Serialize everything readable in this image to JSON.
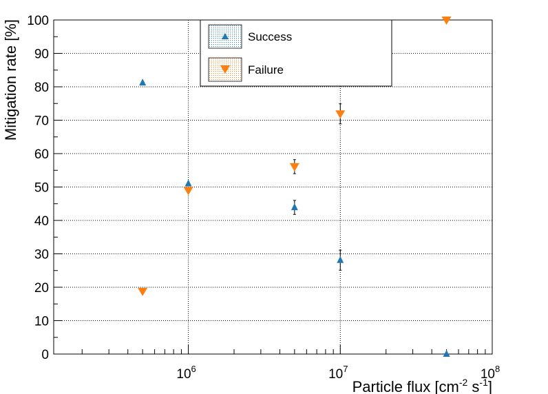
{
  "chart_data": {
    "type": "scatter",
    "title": "",
    "xlabel": {
      "base": "Particle flux [cm",
      "exp1": "-2",
      "mid": " s",
      "exp2": "-1",
      "end": "]"
    },
    "ylabel": "Mitigation rate [%]",
    "xscale": "log",
    "xlim": [
      130000,
      100000000
    ],
    "ylim": [
      0,
      100
    ],
    "grid": true,
    "legend_position": "top-center",
    "y_ticks": [
      0,
      10,
      20,
      30,
      40,
      50,
      60,
      70,
      80,
      90,
      100
    ],
    "y_tick_labels": [
      "0",
      "10",
      "20",
      "30",
      "40",
      "50",
      "60",
      "70",
      "80",
      "90",
      "100"
    ],
    "x_major_ticks": [
      {
        "value": 1000000,
        "base": "10",
        "exp": "6"
      },
      {
        "value": 10000000,
        "base": "10",
        "exp": "7"
      },
      {
        "value": 100000000,
        "base": "10",
        "exp": "8"
      }
    ],
    "series": [
      {
        "name": "Success",
        "marker": "triangle-up",
        "color": "#1f77b4",
        "points": [
          {
            "x": 500000,
            "y": 81.2,
            "err": 0
          },
          {
            "x": 1000000,
            "y": 51.0,
            "err": 0
          },
          {
            "x": 5000000,
            "y": 43.9,
            "err": 2.1
          },
          {
            "x": 10000000,
            "y": 28.1,
            "err": 3.0
          },
          {
            "x": 50000000,
            "y": 0.0,
            "err": 0
          }
        ]
      },
      {
        "name": "Failure",
        "marker": "triangle-down",
        "color": "#ff7f0e",
        "points": [
          {
            "x": 500000,
            "y": 18.8,
            "err": 0
          },
          {
            "x": 1000000,
            "y": 49.0,
            "err": 0
          },
          {
            "x": 5000000,
            "y": 56.1,
            "err": 2.1
          },
          {
            "x": 10000000,
            "y": 71.9,
            "err": 3.0
          },
          {
            "x": 50000000,
            "y": 100.0,
            "err": 0
          }
        ]
      }
    ]
  }
}
